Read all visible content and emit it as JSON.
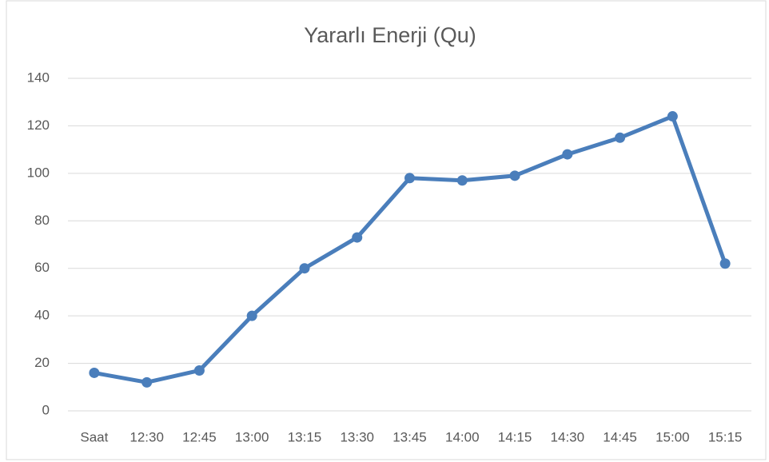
{
  "chart_data": {
    "type": "line",
    "title": "Yararlı Enerji (Qu)",
    "categories": [
      "Saat",
      "12:30",
      "12:45",
      "13:00",
      "13:15",
      "13:30",
      "13:45",
      "14:00",
      "14:15",
      "14:30",
      "14:45",
      "15:00",
      "15:15"
    ],
    "series": [
      {
        "name": "Yararlı Enerji (Qu)",
        "color": "#4a7ebb",
        "values": [
          16,
          12,
          17,
          40,
          60,
          73,
          98,
          97,
          99,
          108,
          115,
          124,
          62
        ]
      }
    ],
    "ylim": [
      0,
      140
    ],
    "yticks": [
      0,
      20,
      40,
      60,
      80,
      100,
      120,
      140
    ],
    "grid": true
  }
}
